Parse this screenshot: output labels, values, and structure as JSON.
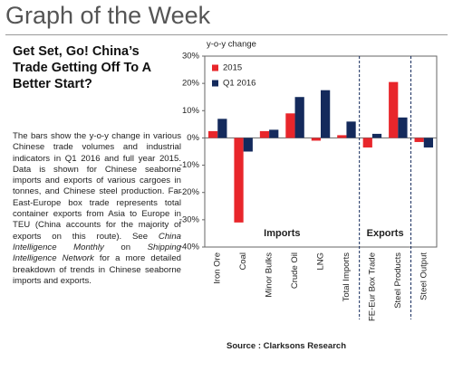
{
  "header": {
    "title": "Graph of the Week"
  },
  "article": {
    "heading": "Get Set, Go! China’s Trade Getting Off To A Better Start?",
    "body": [
      "The bars show the y-o-y change in various Chinese trade volumes and industrial indicators in Q1 2016 and full year 2015. Data is shown for Chinese seaborne imports and exports of various cargoes in tonnes, and Chinese steel production. Far East-Europe box trade represents total container exports from Asia to Europe in TEU (China accounts for the majority of exports on this route). See ",
      "China Intelligence Monthly",
      " on ",
      "Shipping Intelligence Network",
      " for a more detailed breakdown of trends in Chinese seaborne imports and exports."
    ],
    "source": "Source : Clarksons Research"
  },
  "chart_data": {
    "type": "bar",
    "ylabel": "y-o-y change",
    "categories": [
      "Iron Ore",
      "Coal",
      "Minor Bulks",
      "Crude Oil",
      "LNG",
      "Total Imports",
      "FE-Eur Box Trade",
      "Steel Products",
      "Steel Output"
    ],
    "series": [
      {
        "name": "2015",
        "color": "#e8262b",
        "values": [
          2.5,
          -31,
          2.5,
          9,
          -1,
          1,
          -3.5,
          20.5,
          -1.5
        ]
      },
      {
        "name": "Q1 2016",
        "color": "#142a5c",
        "values": [
          7,
          -5,
          3,
          15,
          17.5,
          6,
          1.5,
          7.5,
          -3.5
        ]
      }
    ],
    "groups": [
      {
        "label": "Imports",
        "span": [
          0,
          5
        ]
      },
      {
        "label": "Exports",
        "span": [
          6,
          7
        ]
      }
    ],
    "ylim": [
      -40,
      30
    ],
    "yticks": [
      {
        "value": 30,
        "label": "30%"
      },
      {
        "value": 20,
        "label": "20%"
      },
      {
        "value": 10,
        "label": "10%"
      },
      {
        "value": 0,
        "label": "0%"
      },
      {
        "value": -10,
        "label": "-10%"
      },
      {
        "value": -20,
        "label": "-20%"
      },
      {
        "value": -30,
        "label": "-30%"
      },
      {
        "value": -40,
        "label": "-40%"
      }
    ],
    "legend": "top-left"
  }
}
